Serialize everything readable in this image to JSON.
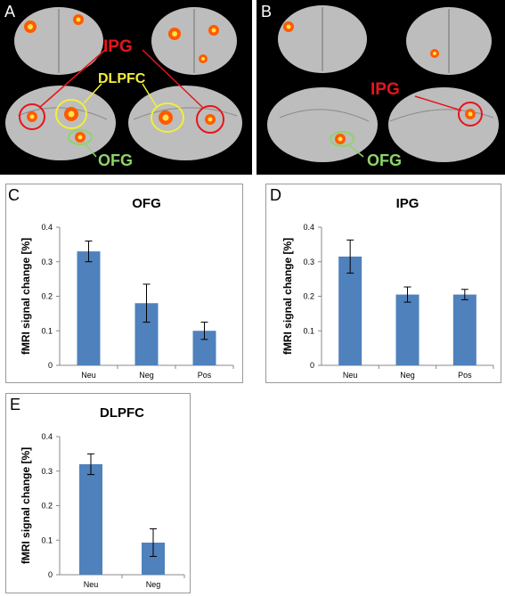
{
  "panels": {
    "A": {
      "letter": "A",
      "labels": {
        "ipg": "IPG",
        "dlpfc": "DLPFC",
        "ofg": "OFG"
      }
    },
    "B": {
      "letter": "B",
      "labels": {
        "ipg": "IPG",
        "ofg": "OFG"
      }
    }
  },
  "colors": {
    "bar": "#4f81bd",
    "ipg_label": "#e8141a",
    "dlpfc_label": "#f2ee3a",
    "ofg_label": "#8ed46a",
    "brain": "#bdbdbd",
    "activation": "#ff5a00",
    "activation_core": "#ffe24a"
  },
  "chart_data": [
    {
      "id": "C",
      "panel_letter": "C",
      "type": "bar",
      "title": "OFG",
      "ylabel": "fMRI signal change [%]",
      "categories": [
        "Neu",
        "Neg",
        "Pos"
      ],
      "values": [
        0.33,
        0.18,
        0.1
      ],
      "errors": [
        0.03,
        0.055,
        0.025
      ],
      "ylim": [
        0,
        0.4
      ],
      "yticks": [
        "0",
        "0.1",
        "0.2",
        "0.3",
        "0.4"
      ]
    },
    {
      "id": "D",
      "panel_letter": "D",
      "type": "bar",
      "title": "IPG",
      "ylabel": "fMRI signal change [%]",
      "categories": [
        "Neu",
        "Neg",
        "Pos"
      ],
      "values": [
        0.315,
        0.205,
        0.205
      ],
      "errors": [
        0.048,
        0.022,
        0.015
      ],
      "ylim": [
        0,
        0.4
      ],
      "yticks": [
        "0",
        "0.1",
        "0.2",
        "0.3",
        "0.4"
      ]
    },
    {
      "id": "E",
      "panel_letter": "E",
      "type": "bar",
      "title": "DLPFC",
      "ylabel": "fMRI signal change [%]",
      "categories": [
        "Neu",
        "Neg"
      ],
      "values": [
        0.32,
        0.093
      ],
      "errors": [
        0.03,
        0.04
      ],
      "ylim": [
        0,
        0.4
      ],
      "yticks": [
        "0",
        "0.1",
        "0.2",
        "0.3",
        "0.4"
      ]
    }
  ]
}
